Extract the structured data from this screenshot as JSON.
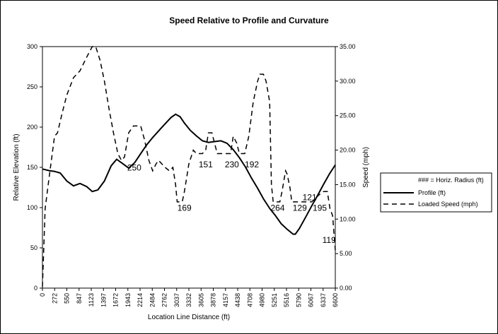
{
  "chart_data": {
    "type": "line",
    "title": "Speed Relative to Profile and Curvature",
    "xlabel": "Location Line Distance (ft)",
    "ylabel_left": "Relative Elevation (ft)",
    "ylabel_right": "Speed (mph)",
    "x_tick_labels": [
      "0",
      "272",
      "550",
      "847",
      "1123",
      "1397",
      "1672",
      "1943",
      "2214",
      "2484",
      "2762",
      "3037",
      "3332",
      "3605",
      "3878",
      "4157",
      "4438",
      "4708",
      "4980",
      "5251",
      "5516",
      "5790",
      "6067",
      "6337",
      "6600"
    ],
    "y_left_ticks": [
      "0",
      "50",
      "100",
      "150",
      "200",
      "250",
      "300"
    ],
    "y_right_ticks": [
      "0.00",
      "5.00",
      "10.00",
      "15.00",
      "20.00",
      "25.00",
      "30.00",
      "35.00"
    ],
    "xlim": [
      0,
      6600
    ],
    "ylim_left": [
      0,
      300
    ],
    "ylim_right": [
      0,
      35
    ],
    "legend_position": "right",
    "legend": [
      {
        "label": "### = Horiz. Radius (ft)",
        "style": "none"
      },
      {
        "label": "Profile (ft)",
        "style": "solid"
      },
      {
        "label": "Loaded Speed (mph)",
        "style": "dashed"
      }
    ],
    "series": [
      {
        "name": "Profile (ft)",
        "axis": "left",
        "style": "solid",
        "points": [
          [
            0,
            148
          ],
          [
            150,
            146
          ],
          [
            272,
            145
          ],
          [
            400,
            143
          ],
          [
            550,
            133
          ],
          [
            700,
            127
          ],
          [
            847,
            130
          ],
          [
            1000,
            126
          ],
          [
            1123,
            120
          ],
          [
            1250,
            122
          ],
          [
            1397,
            133
          ],
          [
            1550,
            152
          ],
          [
            1672,
            160
          ],
          [
            1800,
            155
          ],
          [
            1943,
            149
          ],
          [
            2080,
            156
          ],
          [
            2214,
            167
          ],
          [
            2350,
            178
          ],
          [
            2484,
            187
          ],
          [
            2630,
            196
          ],
          [
            2762,
            204
          ],
          [
            2900,
            212
          ],
          [
            3000,
            216
          ],
          [
            3100,
            213
          ],
          [
            3200,
            205
          ],
          [
            3332,
            196
          ],
          [
            3470,
            189
          ],
          [
            3605,
            183
          ],
          [
            3740,
            181
          ],
          [
            3878,
            182
          ],
          [
            4020,
            183
          ],
          [
            4157,
            180
          ],
          [
            4300,
            172
          ],
          [
            4438,
            162
          ],
          [
            4580,
            150
          ],
          [
            4708,
            137
          ],
          [
            4850,
            124
          ],
          [
            4980,
            111
          ],
          [
            5120,
            99
          ],
          [
            5251,
            90
          ],
          [
            5380,
            80
          ],
          [
            5516,
            73
          ],
          [
            5650,
            67
          ],
          [
            5700,
            67
          ],
          [
            5790,
            74
          ],
          [
            5930,
            88
          ],
          [
            6067,
            102
          ],
          [
            6200,
            115
          ],
          [
            6337,
            129
          ],
          [
            6470,
            142
          ],
          [
            6600,
            153
          ]
        ]
      },
      {
        "name": "Loaded Speed (mph)",
        "axis": "right",
        "style": "dashed",
        "points": [
          [
            0,
            0.2
          ],
          [
            60,
            11.5
          ],
          [
            150,
            16.0
          ],
          [
            272,
            22.0
          ],
          [
            340,
            22.5
          ],
          [
            450,
            25.5
          ],
          [
            550,
            28.0
          ],
          [
            700,
            30.5
          ],
          [
            847,
            31.5
          ],
          [
            1000,
            33.5
          ],
          [
            1123,
            35.0
          ],
          [
            1200,
            35.0
          ],
          [
            1300,
            33.0
          ],
          [
            1397,
            30.0
          ],
          [
            1500,
            26.0
          ],
          [
            1600,
            22.5
          ],
          [
            1700,
            19.5
          ],
          [
            1780,
            18.5
          ],
          [
            1850,
            19.0
          ],
          [
            1943,
            22.5
          ],
          [
            2050,
            23.5
          ],
          [
            2214,
            23.5
          ],
          [
            2300,
            21.5
          ],
          [
            2400,
            18.5
          ],
          [
            2484,
            17.0
          ],
          [
            2560,
            18.0
          ],
          [
            2620,
            18.5
          ],
          [
            2762,
            17.5
          ],
          [
            2860,
            17.0
          ],
          [
            2940,
            17.5
          ],
          [
            3000,
            15.0
          ],
          [
            3037,
            12.5
          ],
          [
            3150,
            12.5
          ],
          [
            3200,
            14.0
          ],
          [
            3300,
            18.0
          ],
          [
            3400,
            20.0
          ],
          [
            3470,
            19.5
          ],
          [
            3605,
            19.5
          ],
          [
            3680,
            20.0
          ],
          [
            3740,
            22.5
          ],
          [
            3820,
            22.5
          ],
          [
            3878,
            21.0
          ],
          [
            3940,
            19.5
          ],
          [
            4020,
            19.5
          ],
          [
            4157,
            19.5
          ],
          [
            4240,
            19.5
          ],
          [
            4300,
            22.0
          ],
          [
            4380,
            21.0
          ],
          [
            4438,
            19.5
          ],
          [
            4560,
            19.5
          ],
          [
            4650,
            22.0
          ],
          [
            4750,
            27.0
          ],
          [
            4850,
            30.0
          ],
          [
            4900,
            31.0
          ],
          [
            4980,
            31.0
          ],
          [
            5040,
            30.0
          ],
          [
            5120,
            27.0
          ],
          [
            5160,
            15.0
          ],
          [
            5200,
            12.5
          ],
          [
            5251,
            12.5
          ],
          [
            5350,
            12.5
          ],
          [
            5400,
            14.0
          ],
          [
            5480,
            17.0
          ],
          [
            5516,
            16.5
          ],
          [
            5580,
            14.5
          ],
          [
            5620,
            12.5
          ],
          [
            5700,
            12.5
          ],
          [
            5790,
            12.5
          ],
          [
            5900,
            12.5
          ],
          [
            6067,
            12.5
          ],
          [
            6150,
            13.0
          ],
          [
            6230,
            13.5
          ],
          [
            6337,
            14.0
          ],
          [
            6420,
            14.0
          ],
          [
            6480,
            11.5
          ],
          [
            6540,
            10.5
          ],
          [
            6600,
            5.5
          ]
        ]
      }
    ],
    "annotations": [
      {
        "text": "250",
        "x": 2070,
        "y_left": 146
      },
      {
        "text": "169",
        "x": 3200,
        "y_left": 96
      },
      {
        "text": "151",
        "x": 3680,
        "y_left": 150
      },
      {
        "text": "230",
        "x": 4270,
        "y_left": 150
      },
      {
        "text": "192",
        "x": 4720,
        "y_left": 150
      },
      {
        "text": "264",
        "x": 5300,
        "y_left": 96
      },
      {
        "text": "129",
        "x": 5800,
        "y_left": 96
      },
      {
        "text": "121",
        "x": 6020,
        "y_left": 109
      },
      {
        "text": "195",
        "x": 6250,
        "y_left": 96
      },
      {
        "text": "119",
        "x": 6460,
        "y_left": 56
      }
    ]
  }
}
